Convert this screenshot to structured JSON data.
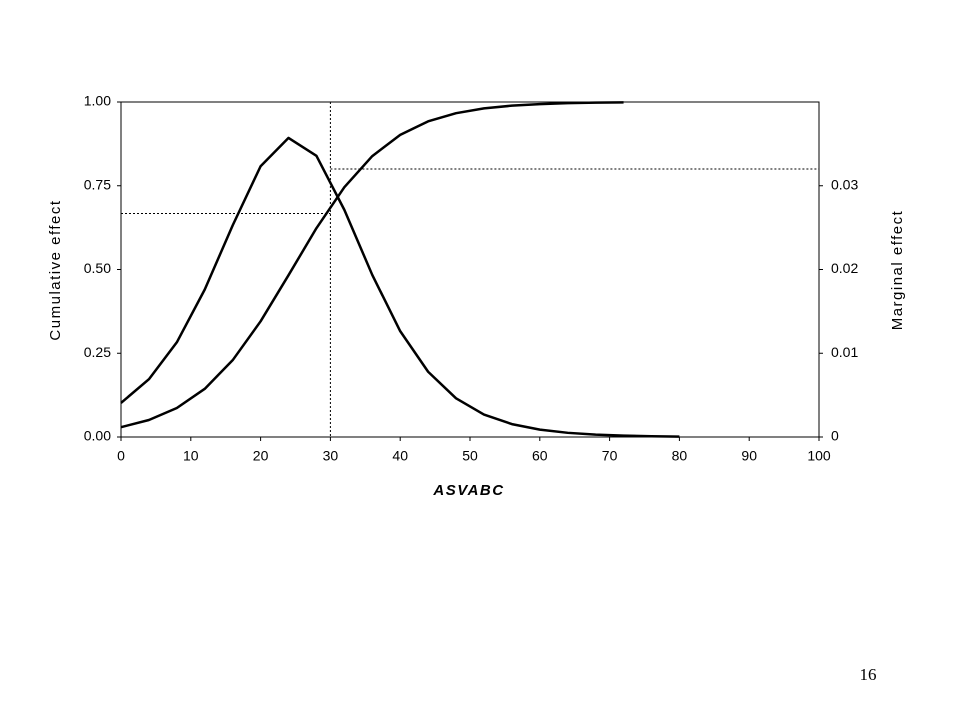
{
  "chart_data": {
    "type": "line",
    "x_label": "ASVABC",
    "y_label": "Cumulative effect",
    "y2_label": "Marginal effect",
    "x": [
      0,
      4,
      8,
      12,
      16,
      20,
      24,
      28,
      32,
      36,
      40,
      44,
      48,
      52,
      56,
      60,
      64,
      68,
      72,
      76,
      80
    ],
    "series": [
      {
        "name": "Cumulative effect",
        "color": "#000000",
        "axis": "y",
        "values": [
          0.0293,
          0.0508,
          0.0866,
          0.1438,
          0.2293,
          0.3453,
          0.483,
          0.6234,
          0.7457,
          0.8386,
          0.902,
          0.9422,
          0.9666,
          0.9809,
          0.9891,
          0.9938,
          0.9965,
          0.998,
          0.9989,
          null,
          null
        ]
      },
      {
        "name": "Marginal effect",
        "color": "#000000",
        "axis": "y2",
        "values": [
          0.00407,
          0.0069,
          0.01131,
          0.01761,
          0.02527,
          0.03233,
          0.03571,
          0.03357,
          0.02712,
          0.01935,
          0.01264,
          0.00779,
          0.00462,
          0.00268,
          0.00154,
          0.00088,
          0.0005,
          0.00028,
          0.00016,
          9e-05,
          5e-05
        ]
      }
    ],
    "reference_lines": {
      "x": 30,
      "y": 0.667,
      "y2": 0.032
    },
    "xlim": [
      0,
      100
    ],
    "xticks": [
      0,
      10,
      20,
      30,
      40,
      50,
      60,
      70,
      80,
      90,
      100
    ],
    "ylim": [
      0,
      1
    ],
    "yticks": [
      {
        "value": 0,
        "label": "0.00"
      },
      {
        "value": 0.25,
        "label": "0.25"
      },
      {
        "value": 0.5,
        "label": "0.50"
      },
      {
        "value": 0.75,
        "label": "0.75"
      },
      {
        "value": 1,
        "label": "1.00"
      }
    ],
    "y2lim": [
      0,
      0.04
    ],
    "y2ticks": [
      0,
      0.01,
      0.02,
      0.03
    ]
  },
  "page_number": "16"
}
